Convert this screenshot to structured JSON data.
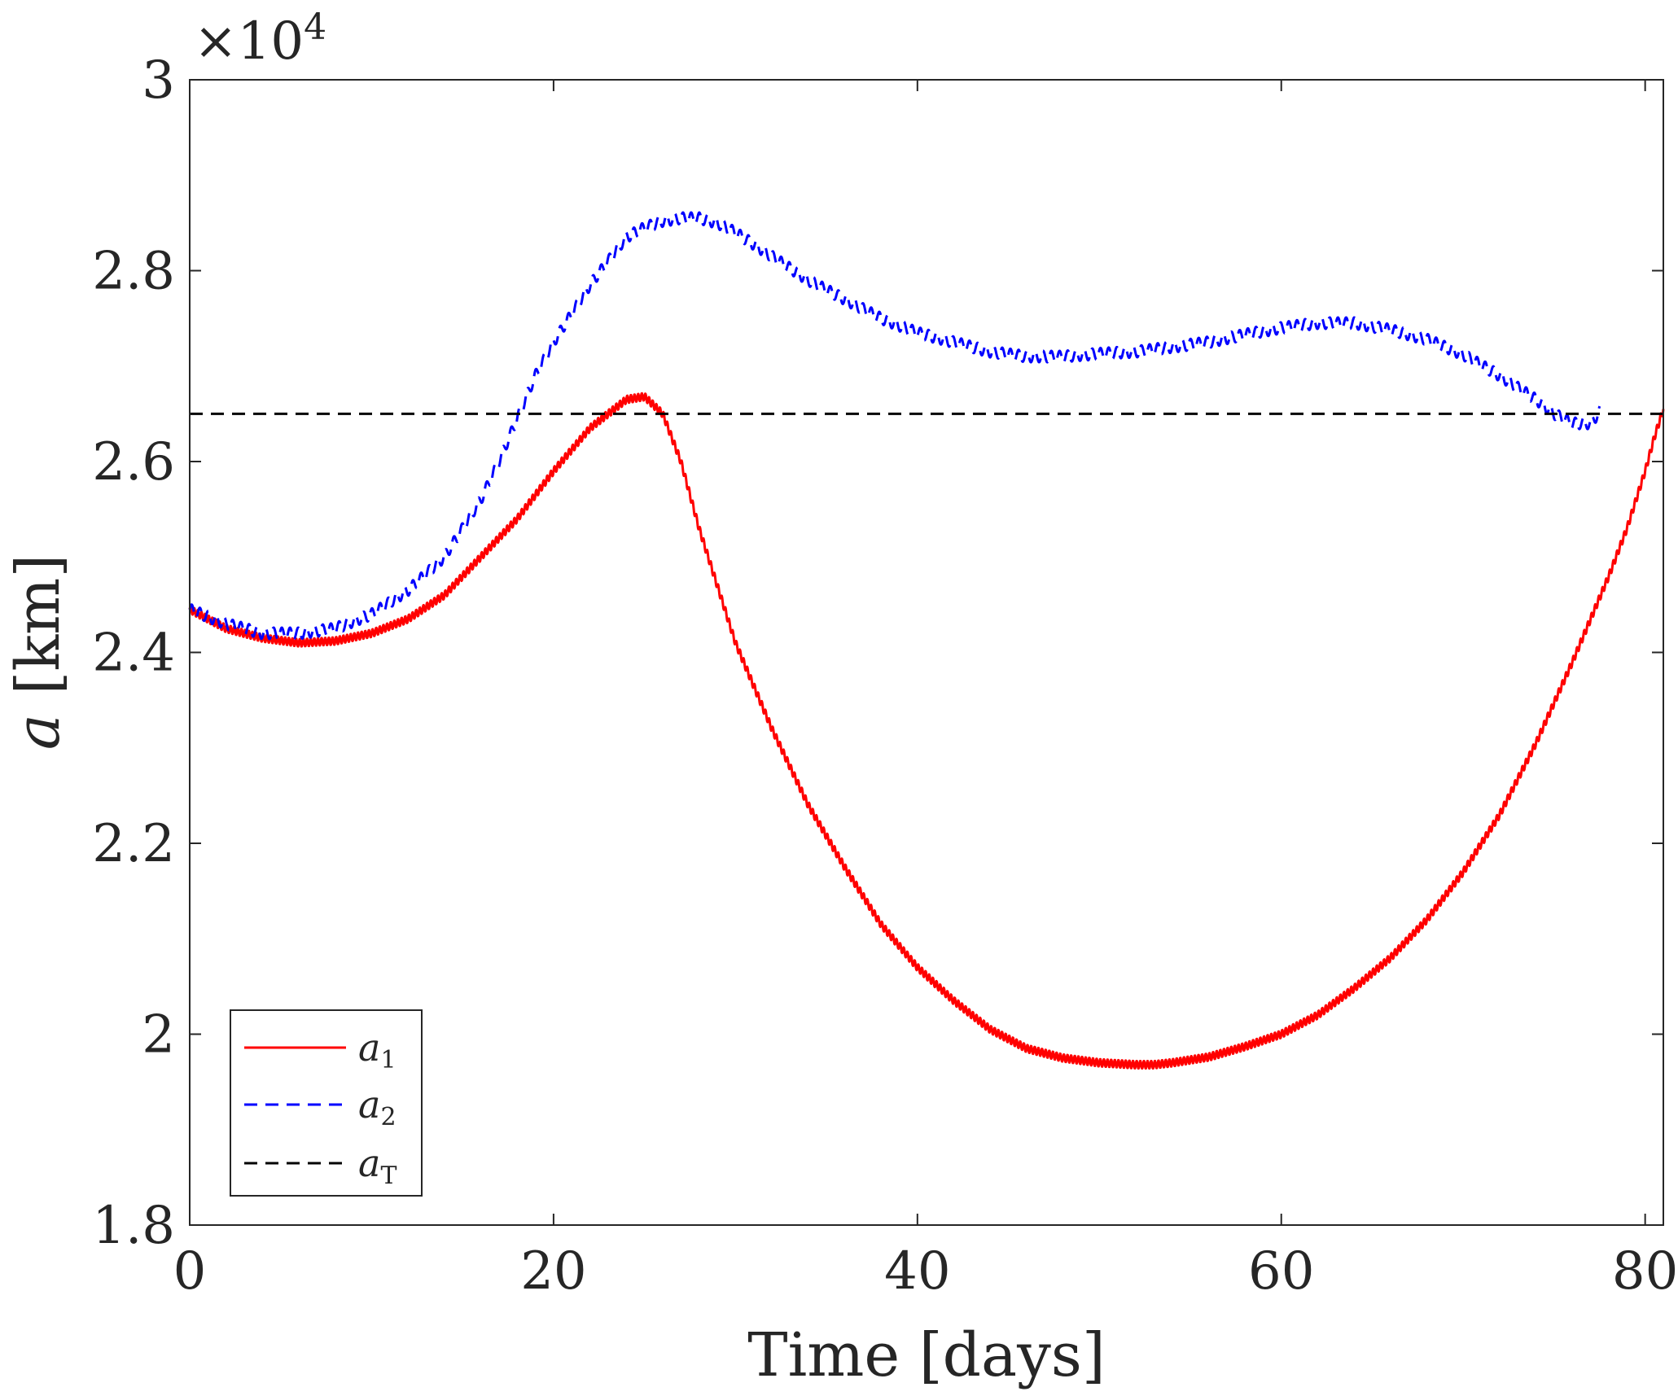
{
  "chart_data": {
    "type": "line",
    "xlabel": "Time [days]",
    "ylabel": "a [km]",
    "ylabel_var": "a",
    "ylabel_unit": "[km]",
    "exponent_label": "×10",
    "exponent_power": "4",
    "xlim": [
      0,
      81
    ],
    "ylim": [
      1.8,
      3.0
    ],
    "y_scale": 10000,
    "x_ticks": [
      0,
      20,
      40,
      60,
      80
    ],
    "x_tick_labels": [
      "0",
      "20",
      "40",
      "60",
      "80"
    ],
    "y_ticks": [
      1.8,
      2.0,
      2.2,
      2.4,
      2.6,
      2.8,
      3.0
    ],
    "y_tick_labels": [
      "1.8",
      "2",
      "2.2",
      "2.4",
      "2.6",
      "2.8",
      "3"
    ],
    "grid": false,
    "legend_position": "bottom-left",
    "series": [
      {
        "name": "a1",
        "label_base": "a",
        "label_sub": "1",
        "color": "#ff0000",
        "dash": "solid",
        "ripple_amplitude": 0.004,
        "ripple_period": 0.2,
        "x": [
          0,
          2,
          4,
          6,
          8,
          10,
          12,
          14,
          16,
          18,
          20,
          22,
          24,
          25,
          26,
          27,
          28,
          30,
          32,
          34,
          36,
          38,
          40,
          42,
          44,
          46,
          48,
          50,
          52,
          53,
          54,
          56,
          58,
          60,
          62,
          64,
          66,
          68,
          70,
          72,
          74,
          76,
          78,
          79,
          80,
          80.5,
          81
        ],
        "y": [
          2.445,
          2.425,
          2.415,
          2.41,
          2.412,
          2.42,
          2.435,
          2.46,
          2.5,
          2.54,
          2.59,
          2.635,
          2.665,
          2.668,
          2.65,
          2.6,
          2.53,
          2.41,
          2.32,
          2.24,
          2.175,
          2.115,
          2.07,
          2.035,
          2.005,
          1.985,
          1.975,
          1.97,
          1.968,
          1.968,
          1.97,
          1.976,
          1.987,
          2.0,
          2.02,
          2.048,
          2.08,
          2.12,
          2.17,
          2.23,
          2.305,
          2.39,
          2.48,
          2.53,
          2.59,
          2.625,
          2.655
        ]
      },
      {
        "name": "a2",
        "label_base": "a",
        "label_sub": "2",
        "color": "#0000ff",
        "dash": "dashed",
        "ripple_amplitude": 0.006,
        "ripple_period": 0.45,
        "x": [
          0,
          2,
          4,
          6,
          8,
          10,
          12,
          14,
          16,
          17,
          18,
          19,
          20,
          21,
          22,
          23,
          24,
          25,
          26,
          27,
          28,
          29,
          30,
          32,
          34,
          36,
          38,
          40,
          42,
          44,
          46,
          48,
          50,
          52,
          54,
          56,
          58,
          60,
          62,
          64,
          66,
          68,
          70,
          72,
          74,
          75,
          76,
          77,
          77.5
        ],
        "y": [
          2.445,
          2.43,
          2.42,
          2.42,
          2.425,
          2.44,
          2.465,
          2.5,
          2.56,
          2.6,
          2.645,
          2.69,
          2.725,
          2.755,
          2.785,
          2.81,
          2.835,
          2.845,
          2.852,
          2.855,
          2.855,
          2.85,
          2.84,
          2.815,
          2.79,
          2.77,
          2.75,
          2.735,
          2.725,
          2.715,
          2.71,
          2.71,
          2.713,
          2.715,
          2.72,
          2.725,
          2.733,
          2.74,
          2.745,
          2.745,
          2.738,
          2.728,
          2.712,
          2.69,
          2.665,
          2.65,
          2.64,
          2.64,
          2.652
        ]
      },
      {
        "name": "aT",
        "label_base": "a",
        "label_sub": "T",
        "color": "#000000",
        "dash": "dashed",
        "ripple_amplitude": 0,
        "ripple_period": 1,
        "x": [
          0,
          81
        ],
        "y": [
          2.65,
          2.65
        ]
      }
    ]
  }
}
